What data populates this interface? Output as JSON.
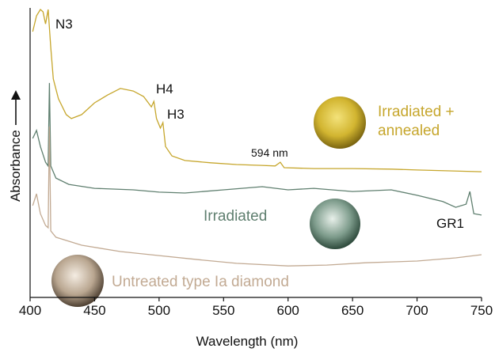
{
  "chart_data": {
    "type": "line",
    "xlabel": "Wavelength (nm)",
    "ylabel": "Absorbance",
    "xlim": [
      400,
      750
    ],
    "xticks": [
      400,
      450,
      500,
      550,
      600,
      650,
      700,
      750
    ],
    "ylim": [
      0,
      100
    ],
    "annotations": [
      "N3",
      "H4",
      "H3",
      "594 nm",
      "GR1"
    ],
    "series": [
      {
        "name": "Irradiated + annealed",
        "color": "#c6a62c",
        "x": [
          402,
          405,
          408,
          410,
          412,
          414,
          416,
          418,
          422,
          428,
          432,
          440,
          450,
          460,
          470,
          480,
          488,
          494,
          496,
          498,
          501,
          503,
          505,
          510,
          520,
          540,
          560,
          580,
          590,
          594,
          597,
          620,
          650,
          680,
          700,
          750
        ],
        "values": [
          92.3,
          97.8,
          100,
          99.2,
          95,
          100,
          86.8,
          75.8,
          68.9,
          63.4,
          62,
          63.4,
          67.5,
          70.2,
          72.5,
          71.6,
          69.7,
          66.1,
          68,
          62,
          58.7,
          60.6,
          52.3,
          49,
          47.4,
          46.6,
          46,
          45.7,
          45.5,
          46.8,
          44.9,
          44.6,
          44.6,
          44.4,
          44.1,
          43.5
        ]
      },
      {
        "name": "Irradiated",
        "color": "#5f7f6f",
        "x": [
          402,
          405,
          408,
          412,
          414,
          415,
          416,
          420,
          430,
          450,
          480,
          500,
          520,
          550,
          580,
          600,
          620,
          650,
          680,
          700,
          720,
          730,
          738,
          741,
          744,
          750
        ],
        "values": [
          55.1,
          57.9,
          52.3,
          46.8,
          45.5,
          74.4,
          45.5,
          41.3,
          39.1,
          37.7,
          37.2,
          36.4,
          36.1,
          37.2,
          38.3,
          37.2,
          37.7,
          36.6,
          37.2,
          35.3,
          33.1,
          31.1,
          32.2,
          36.6,
          28.9,
          28.4
        ]
      },
      {
        "name": "Untreated type Ia diamond",
        "color": "#c2aa93",
        "x": [
          402,
          405,
          408,
          412,
          414,
          415,
          416,
          420,
          440,
          470,
          500,
          530,
          560,
          600,
          630,
          660,
          700,
          730,
          750
        ],
        "values": [
          31.7,
          35.8,
          28.9,
          24.8,
          24,
          59.2,
          22.9,
          20.7,
          17.9,
          15.7,
          14.3,
          12.9,
          11.6,
          10.7,
          11,
          11.8,
          12.4,
          13.5,
          14.6
        ]
      }
    ]
  }
}
